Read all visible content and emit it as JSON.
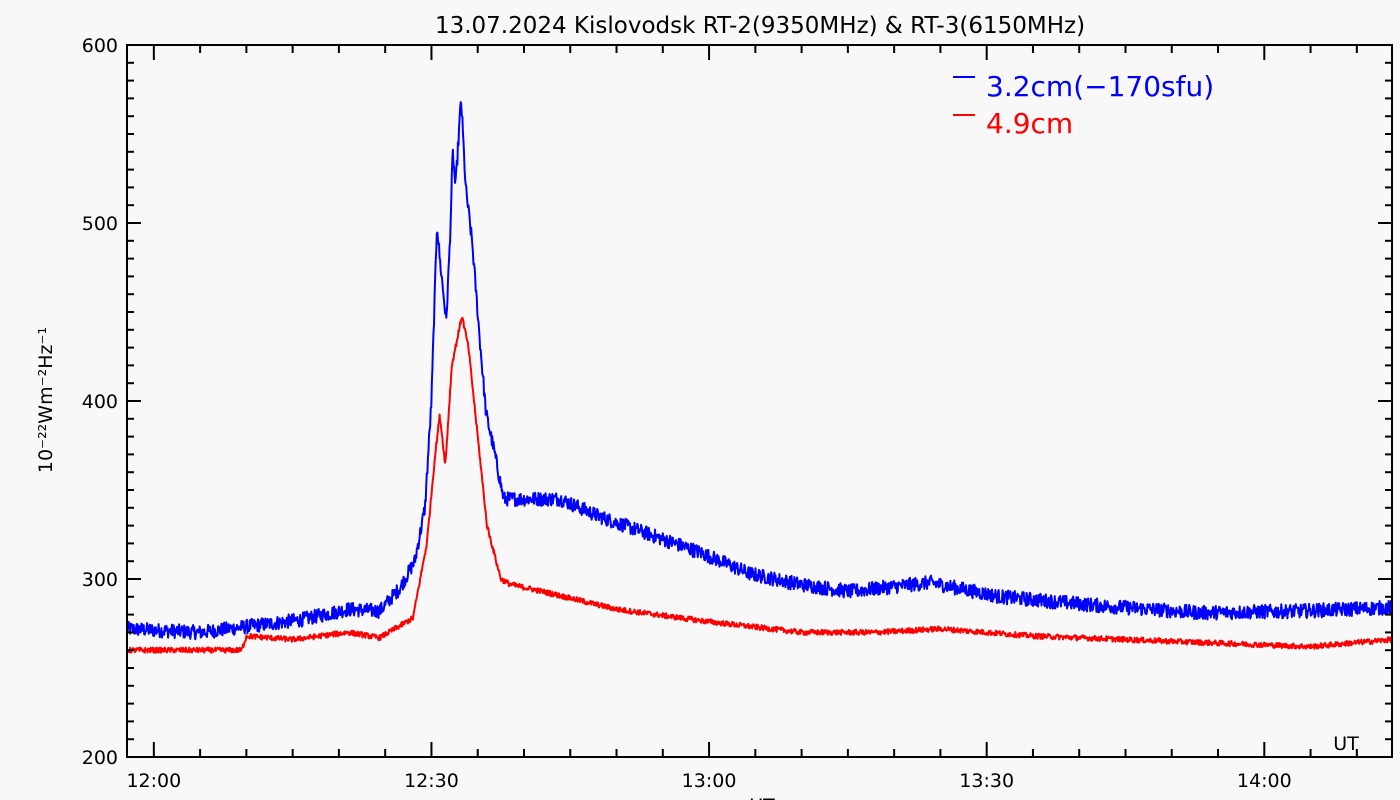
{
  "chart_data": {
    "type": "line",
    "title": "13.07.2024 Kislovodsk RT-2(9350MHz) & RT-3(6150MHz)",
    "xlabel": "UT",
    "xlabel_inside": "UT",
    "ylabel": "10⁻²²Wm⁻²Hz⁻¹",
    "x_units": "minutes after 12:00 UT",
    "xlim": [
      -2.9,
      133.8
    ],
    "ylim": [
      200,
      600
    ],
    "x_ticks": [
      {
        "value": 0,
        "label": "12:00"
      },
      {
        "value": 30,
        "label": "12:30"
      },
      {
        "value": 60,
        "label": "13:00"
      },
      {
        "value": 90,
        "label": "13:30"
      },
      {
        "value": 120,
        "label": "14:00"
      }
    ],
    "y_ticks": [
      {
        "value": 200,
        "label": "200"
      },
      {
        "value": 300,
        "label": "300"
      },
      {
        "value": 400,
        "label": "400"
      },
      {
        "value": 500,
        "label": "500"
      },
      {
        "value": 600,
        "label": "600"
      }
    ],
    "grid": false,
    "legend_position": "top-right",
    "series": [
      {
        "name": "3.2cm(−170sfu)",
        "color": "#0000ff",
        "noise": 4,
        "x": [
          -2.9,
          5,
          15.8,
          21,
          24.4,
          26.6,
          28.2,
          29.3,
          30,
          30.6,
          30.9,
          31.6,
          32,
          32.3,
          32.6,
          33.2,
          33.7,
          34.4,
          35.2,
          35.9,
          36.7,
          37.8,
          40.6,
          43.9,
          48.2,
          53.6,
          59,
          64.4,
          69.8,
          75.2,
          83.9,
          91.5,
          102.3,
          113.1,
          123.9,
          133.8
        ],
        "y": [
          272,
          270,
          277,
          283,
          282,
          295,
          310,
          340,
          400,
          500,
          480,
          445,
          490,
          540,
          520,
          570,
          520,
          489,
          436,
          393,
          374,
          345,
          345,
          345,
          335,
          325,
          315,
          303,
          297,
          293,
          298,
          290,
          285,
          281,
          282,
          284
        ]
      },
      {
        "name": "4.9cm",
        "color": "#ff0000",
        "noise": 1.5,
        "x": [
          -2.9,
          9.5,
          10,
          15,
          21,
          24.4,
          28,
          29.5,
          30.4,
          30.9,
          31.5,
          32.2,
          33.3,
          34,
          35,
          36,
          37.5,
          38.5,
          42,
          50,
          60,
          70,
          78,
          85,
          95,
          110,
          125,
          133.8
        ],
        "y": [
          260,
          260,
          268,
          266,
          270,
          267,
          278,
          320,
          370,
          392,
          364,
          420,
          448,
          430,
          380,
          330,
          300,
          297,
          293,
          283,
          276,
          270,
          270,
          272,
          268,
          265,
          262,
          266
        ]
      }
    ]
  }
}
